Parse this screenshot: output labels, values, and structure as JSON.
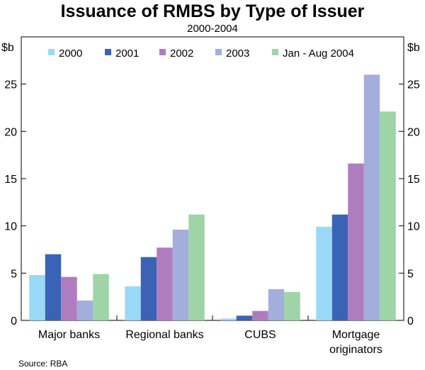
{
  "chart_data": {
    "type": "bar",
    "title": "Issuance of RMBS by Type of Issuer",
    "subtitle": "2000-2004",
    "ylabel_left": "$b",
    "ylabel_right": "$b",
    "ylim": [
      0,
      30
    ],
    "yticks": [
      0,
      5,
      10,
      15,
      20,
      25
    ],
    "categories": [
      [
        "Major banks"
      ],
      [
        "Regional banks"
      ],
      [
        "CUBS"
      ],
      [
        "Mortgage",
        "originators"
      ]
    ],
    "series": [
      {
        "name": "2000",
        "color": "#99d9f7",
        "values": [
          4.8,
          3.6,
          0.2,
          9.9
        ]
      },
      {
        "name": "2001",
        "color": "#3a63b5",
        "values": [
          7.0,
          6.7,
          0.5,
          11.2
        ]
      },
      {
        "name": "2002",
        "color": "#b07cc0",
        "values": [
          4.6,
          7.7,
          1.0,
          16.6
        ]
      },
      {
        "name": "2003",
        "color": "#a3aedc",
        "values": [
          2.1,
          9.6,
          3.3,
          26.0
        ]
      },
      {
        "name": "Jan - Aug 2004",
        "color": "#9ed4a6",
        "values": [
          4.9,
          11.2,
          3.0,
          22.1
        ]
      }
    ],
    "legend_position": "top",
    "grid": false
  },
  "source": "Source: RBA"
}
